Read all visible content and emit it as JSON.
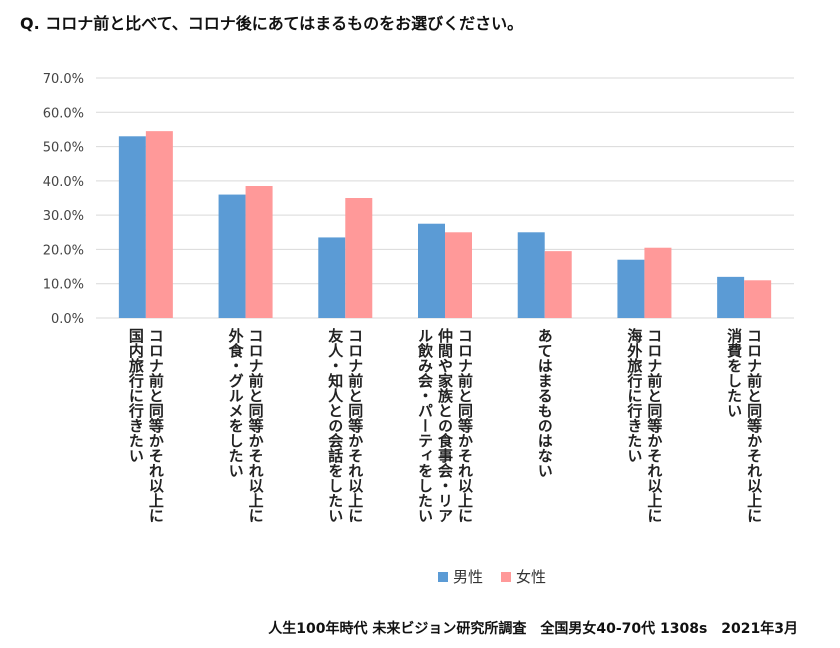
{
  "title": "Q. コロナ前と比べて、コロナ後にあてはまるものをお選びください。",
  "footer": "人生100年時代 未来ビジョン研究所調査　全国男女40-70代 1308s　2021年3月",
  "colors": {
    "male": "#5b9bd5",
    "female": "#ff9999",
    "grid": "#d9d9d9",
    "axis_text": "#444444"
  },
  "chart_data": {
    "type": "bar",
    "title": "Q. コロナ前と比べて、コロナ後にあてはまるものをお選びください。",
    "categories": [
      [
        "コロナ前と同等かそれ以上に",
        "国内旅行に行きたい"
      ],
      [
        "コロナ前と同等かそれ以上に",
        "外食・グルメをしたい"
      ],
      [
        "コロナ前と同等かそれ以上に",
        "友人・知人との会話をしたい"
      ],
      [
        "コロナ前と同等かそれ以上に",
        "仲間や家族との食事会・リア",
        "ル飲み会・パーティをしたい"
      ],
      [
        "あてはまるものはない"
      ],
      [
        "コロナ前と同等かそれ以上に",
        "海外旅行に行きたい"
      ],
      [
        "コロナ前と同等かそれ以上に",
        "消費をしたい"
      ]
    ],
    "series": [
      {
        "name": "男性",
        "values": [
          53.0,
          36.0,
          23.5,
          27.5,
          25.0,
          17.0,
          12.0
        ]
      },
      {
        "name": "女性",
        "values": [
          54.5,
          38.5,
          35.0,
          25.0,
          19.5,
          20.5,
          11.0
        ]
      }
    ],
    "y_ticks": [
      "0.0%",
      "10.0%",
      "20.0%",
      "30.0%",
      "40.0%",
      "50.0%",
      "60.0%",
      "70.0%"
    ],
    "ylim": [
      0,
      70
    ],
    "xlabel": "",
    "ylabel": "",
    "grid": true,
    "legend": "bottom"
  }
}
